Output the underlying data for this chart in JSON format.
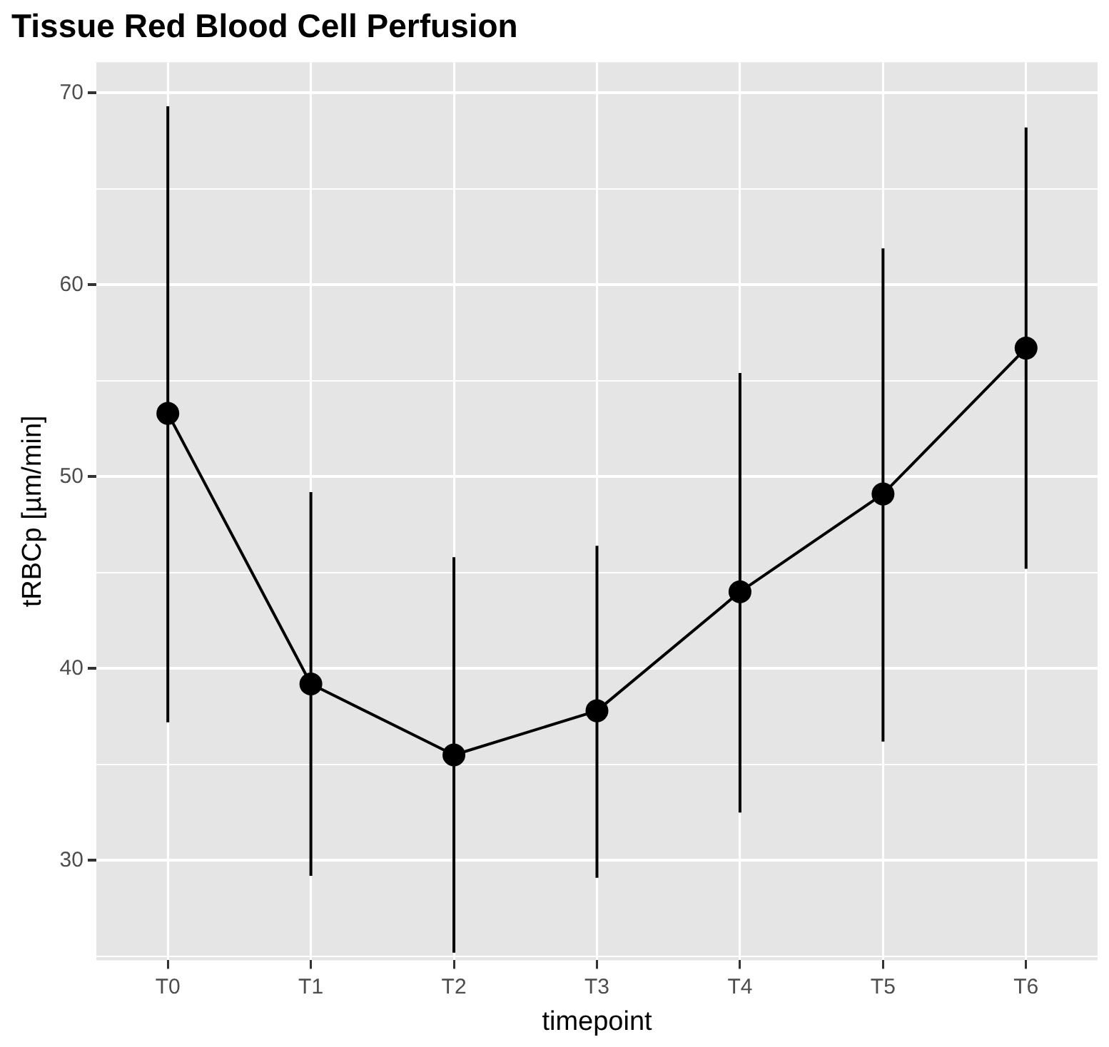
{
  "chart_data": {
    "type": "line",
    "title": "Tissue Red Blood Cell Perfusion",
    "xlabel": "timepoint",
    "ylabel": "tRBCp [µm/min]",
    "categories": [
      "T0",
      "T1",
      "T2",
      "T3",
      "T4",
      "T5",
      "T6"
    ],
    "series": [
      {
        "color": "#000000",
        "values": [
          53.3,
          39.2,
          35.5,
          37.8,
          44.0,
          49.1,
          56.7
        ],
        "errors": [
          [
            37.2,
            69.3
          ],
          [
            29.2,
            49.2
          ],
          [
            25.2,
            45.8
          ],
          [
            29.1,
            46.4
          ],
          [
            32.5,
            55.4
          ],
          [
            36.2,
            61.9
          ],
          [
            45.2,
            68.2
          ]
        ]
      }
    ],
    "ylim": [
      24.8,
      71.6
    ],
    "yticks": [
      {
        "value": 25,
        "label": null
      },
      30,
      {
        "value": 35,
        "label": null
      },
      40,
      {
        "value": 45,
        "label": null
      },
      50,
      {
        "value": 55,
        "label": null
      },
      60,
      {
        "value": 65,
        "label": null
      },
      70
    ],
    "grid": true,
    "legend": false,
    "marker": "circle",
    "line_style": "solid"
  }
}
